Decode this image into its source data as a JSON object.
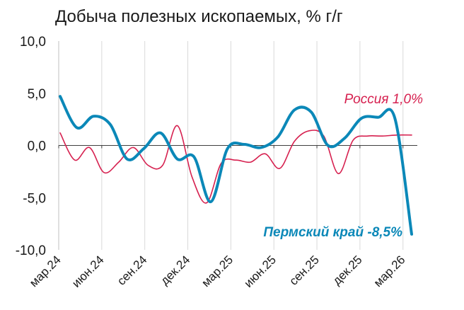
{
  "chart_data": {
    "type": "line",
    "title": "Добыча полезных ископаемых, % г/г",
    "xlabel": "",
    "ylabel": "",
    "ylim": [
      -10,
      10
    ],
    "y_ticks": [
      "10,0",
      "5,0",
      "0,0",
      "-5,0",
      "-10,0"
    ],
    "y_tick_values": [
      10,
      5,
      0,
      -5,
      -10
    ],
    "x_tick_labels": [
      "мар.24",
      "июн.24",
      "сен.24",
      "дек.24",
      "мар.25",
      "июн.25",
      "сен.25",
      "дек.25",
      "мар.26"
    ],
    "x_tick_months": [
      0,
      3,
      6,
      9,
      12,
      15,
      18,
      21,
      24
    ],
    "grid": "vertical",
    "series": [
      {
        "name": "Россия 1,0%",
        "color": "#d6204f",
        "x": [
          0,
          1,
          2,
          3,
          4,
          5,
          6,
          7,
          8,
          9,
          10,
          11,
          12,
          13,
          14,
          15,
          16,
          17,
          18,
          19,
          20,
          21,
          22,
          23,
          24
        ],
        "values": [
          1.2,
          -1.4,
          -0.2,
          -2.6,
          -1.6,
          -0.2,
          -1.9,
          -1.9,
          1.9,
          -3.0,
          -5.5,
          -1.7,
          -1.4,
          -1.6,
          -0.8,
          -2.2,
          0.4,
          1.4,
          0.9,
          -2.7,
          0.5,
          0.9,
          0.9,
          1.0,
          1.0
        ]
      },
      {
        "name": "Пермский край -8,5%",
        "color": "#0b88b8",
        "x": [
          0,
          1,
          2,
          3,
          4,
          5,
          6,
          7,
          8,
          9,
          10,
          11,
          12,
          13,
          14,
          15,
          16,
          17,
          18,
          19,
          20,
          21,
          22,
          23,
          24
        ],
        "values": [
          4.7,
          1.7,
          2.8,
          2.0,
          -1.3,
          -0.3,
          1.2,
          -1.3,
          -1.1,
          -5.4,
          -0.3,
          0.1,
          -0.2,
          0.8,
          3.4,
          3.2,
          0.0,
          0.7,
          2.6,
          2.7,
          2.6,
          -8.5,
          null,
          null,
          null
        ]
      }
    ]
  }
}
